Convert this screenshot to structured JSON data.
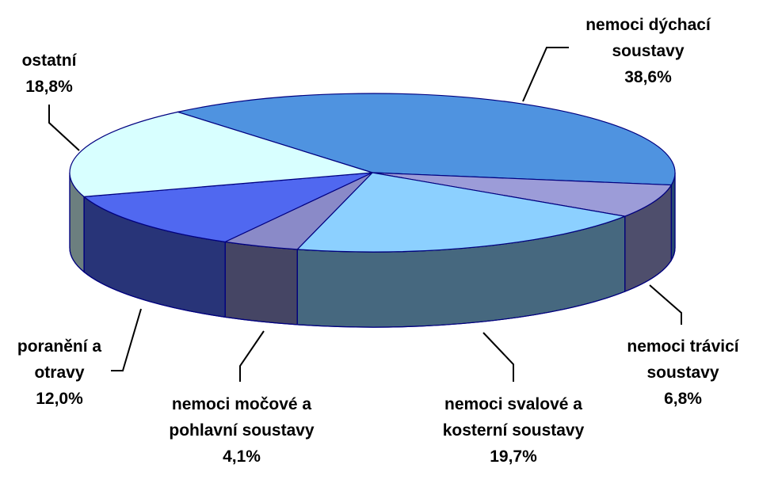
{
  "chart_data": {
    "type": "pie",
    "view": "3d",
    "categories": [
      "nemoci dýchací soustavy",
      "nemoci trávicí soustavy",
      "nemoci svalové a kosterní soustavy",
      "nemoci močové a pohlavní soustavy",
      "poranění a otravy",
      "ostatní"
    ],
    "values": [
      38.6,
      6.8,
      19.7,
      4.1,
      12.0,
      18.8
    ],
    "value_labels": [
      "38,6%",
      "6,8%",
      "19,7%",
      "4,1%",
      "12,0%",
      "18,8%"
    ],
    "colors": [
      "#4f93e0",
      "#9c9cd8",
      "#8cd0ff",
      "#8a8ac8",
      "#5068f0",
      "#d8ffff"
    ]
  }
}
